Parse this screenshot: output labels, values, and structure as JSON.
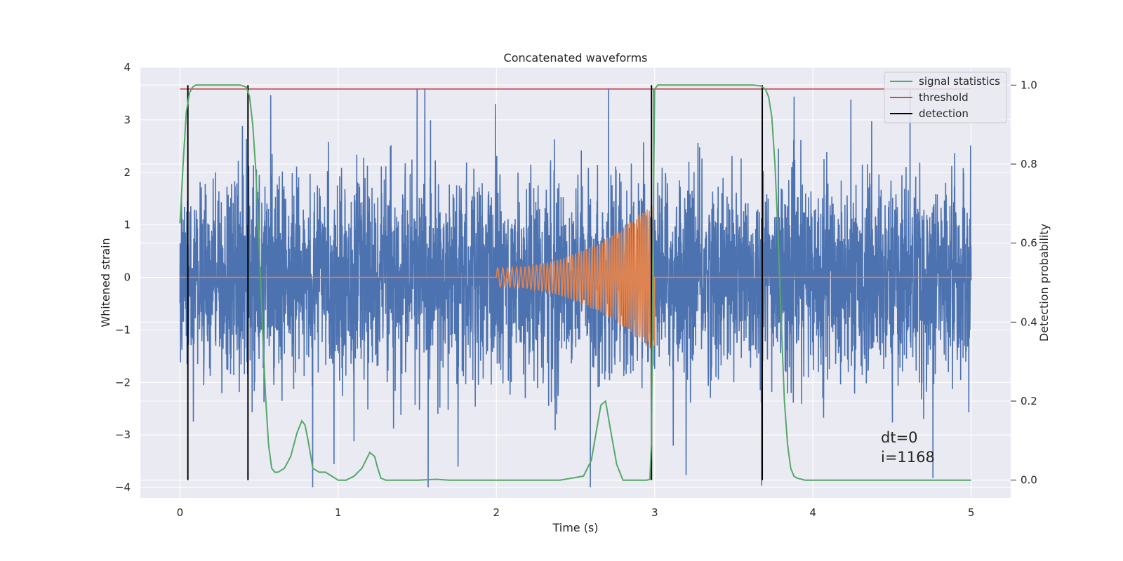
{
  "chart_data": {
    "type": "line",
    "title": "Concatenated waveforms",
    "xlabel": "Time (s)",
    "ylabel": "Whitened strain",
    "y2label": "Detection probability",
    "xlim": [
      -0.25,
      5.25
    ],
    "ylim": [
      -4.2,
      4.0
    ],
    "y2lim": [
      -0.045,
      1.045
    ],
    "xticks": [
      0,
      1,
      2,
      3,
      4,
      5
    ],
    "yticks": [
      -4,
      -3,
      -2,
      -1,
      0,
      1,
      2,
      3,
      4
    ],
    "y2ticks": [
      0.0,
      0.2,
      0.4,
      0.6,
      0.8,
      1.0
    ],
    "xtick_labels": [
      "0",
      "1",
      "2",
      "3",
      "4",
      "5"
    ],
    "ytick_labels": [
      "−4",
      "−3",
      "−2",
      "−1",
      "0",
      "1",
      "2",
      "3",
      "4"
    ],
    "y2tick_labels": [
      "0.0",
      "0.2",
      "0.4",
      "0.6",
      "0.8",
      "1.0"
    ],
    "grid": true,
    "legend_position": "top-right",
    "colors": {
      "strain": "#4c72b0",
      "waveform": "#dd8452",
      "signal_statistics": "#55a868",
      "threshold": "#c44e52",
      "detection": "#000000",
      "background": "#eaeaf2",
      "grid": "#ffffff"
    },
    "series": [
      {
        "name": "strain",
        "axis": "left",
        "description_range": [
          -4.0,
          3.6
        ],
        "x_range": [
          0,
          5
        ]
      },
      {
        "name": "waveform",
        "axis": "left",
        "chirp_start": 2.0,
        "chirp_end": 3.0,
        "amp_start": 0.18,
        "amp_end": 1.45
      },
      {
        "name": "signal statistics",
        "axis": "right",
        "x": [
          0.0,
          0.02,
          0.04,
          0.06,
          0.08,
          0.1,
          0.15,
          0.2,
          0.3,
          0.38,
          0.42,
          0.44,
          0.46,
          0.48,
          0.5,
          0.52,
          0.54,
          0.56,
          0.58,
          0.6,
          0.62,
          0.66,
          0.7,
          0.74,
          0.77,
          0.79,
          0.81,
          0.84,
          0.88,
          0.92,
          0.96,
          1.0,
          1.05,
          1.1,
          1.15,
          1.2,
          1.23,
          1.25,
          1.27,
          1.3,
          1.35,
          1.5,
          1.62,
          1.7,
          2.0,
          2.4,
          2.55,
          2.6,
          2.63,
          2.66,
          2.69,
          2.72,
          2.76,
          2.8,
          2.9,
          2.95,
          2.97,
          2.98,
          2.99,
          3.0,
          3.02,
          3.1,
          3.3,
          3.5,
          3.62,
          3.67,
          3.7,
          3.72,
          3.74,
          3.76,
          3.78,
          3.8,
          3.82,
          3.84,
          3.86,
          3.88,
          3.9,
          3.95,
          4.0,
          4.5,
          5.0
        ],
        "y": [
          0.65,
          0.8,
          0.93,
          0.98,
          0.995,
          1.0,
          1.0,
          1.0,
          1.0,
          1.0,
          0.995,
          0.97,
          0.9,
          0.78,
          0.6,
          0.4,
          0.22,
          0.09,
          0.03,
          0.02,
          0.02,
          0.03,
          0.06,
          0.12,
          0.15,
          0.14,
          0.1,
          0.03,
          0.02,
          0.02,
          0.01,
          0.0,
          0.0,
          0.01,
          0.03,
          0.07,
          0.06,
          0.03,
          0.005,
          0.0,
          0.0,
          0.0,
          0.002,
          0.0,
          0.0,
          0.0,
          0.01,
          0.05,
          0.12,
          0.19,
          0.2,
          0.13,
          0.04,
          0.0,
          0.0,
          0.0,
          0.002,
          0.1,
          0.6,
          0.99,
          1.0,
          1.0,
          1.0,
          1.0,
          1.0,
          0.998,
          0.99,
          0.97,
          0.92,
          0.8,
          0.62,
          0.4,
          0.2,
          0.09,
          0.03,
          0.01,
          0.005,
          0.0,
          0.0,
          0.0,
          0.0
        ]
      },
      {
        "name": "threshold",
        "axis": "right",
        "value": 0.99,
        "x_range": [
          0,
          5
        ]
      },
      {
        "name": "detection",
        "axis": "right",
        "x": [
          0.05,
          0.43,
          2.98,
          3.68
        ],
        "y_range": [
          0.0,
          1.0
        ]
      }
    ],
    "legend": [
      "signal statistics",
      "threshold",
      "detection"
    ],
    "annotations": {
      "dt": "dt=0",
      "i": "i=1168"
    }
  }
}
